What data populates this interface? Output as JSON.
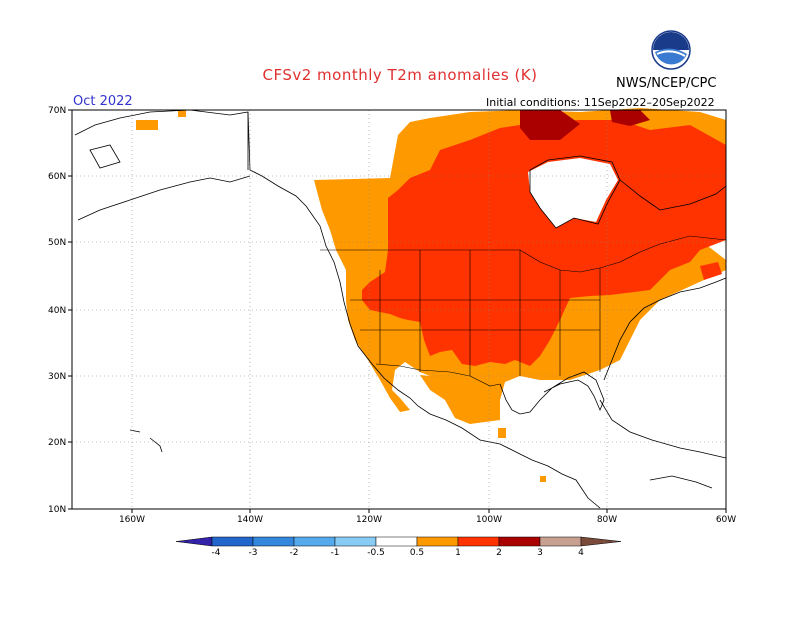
{
  "title": "CFSv2 monthly T2m anomalies (K)",
  "agency": "NWS/NCEP/CPC",
  "month": "Oct 2022",
  "initial_conditions": "Initial conditions: 11Sep2022–20Sep2022",
  "lat_labels": [
    "70N",
    "60N",
    "50N",
    "40N",
    "30N",
    "20N",
    "10N"
  ],
  "lon_labels": [
    "160W",
    "140W",
    "120W",
    "100W",
    "80W",
    "60W"
  ],
  "colorbar": {
    "levels": [
      "-4",
      "-3",
      "-2",
      "-1",
      "-0.5",
      "0.5",
      "1",
      "2",
      "3",
      "4"
    ],
    "colors": [
      "#3322aa",
      "#2266cc",
      "#3388dd",
      "#55aaee",
      "#88ccf5",
      "#ffffff",
      "#ff9900",
      "#ff3300",
      "#aa0000",
      "#c8a090",
      "#7a4a3a"
    ]
  },
  "anomaly_colors": {
    "light": "#ff9900",
    "strong": "#ff3300",
    "extreme": "#aa0000"
  }
}
